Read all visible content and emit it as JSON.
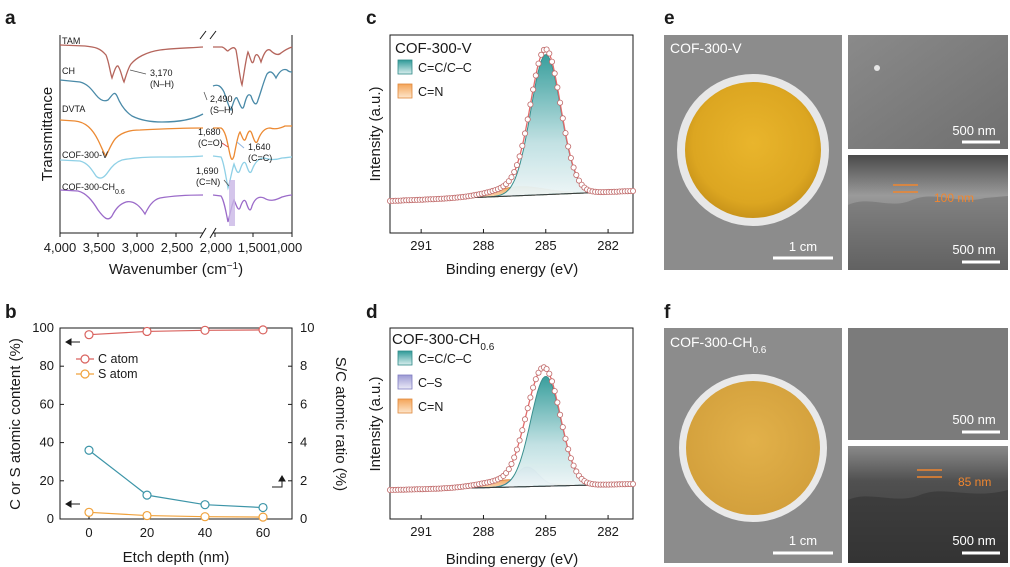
{
  "panels": {
    "a": "a",
    "b": "b",
    "c": "c",
    "d": "d",
    "e": "e",
    "f": "f"
  },
  "panel_a": {
    "ylabel": "Transmittance",
    "xlabel": "Wavenumber (cm",
    "xlabel_sup": "−1",
    "xlabel_close": ")",
    "xticks": [
      "4,000",
      "3,500",
      "3,000",
      "2,500",
      "2,000",
      "1,500",
      "1,000"
    ],
    "curves": [
      {
        "name": "TAM",
        "color": "#b5655c"
      },
      {
        "name": "CH",
        "color": "#4a8aa8"
      },
      {
        "name": "DVTA",
        "color": "#ec8a33"
      },
      {
        "name": "COF-300-V",
        "color": "#8fd0e6"
      },
      {
        "name": "COF-300-CH",
        "sub": "0.6",
        "color": "#9b6bc9"
      }
    ],
    "annotations": [
      {
        "l1": "3,170",
        "l2": "(N–H)"
      },
      {
        "l1": "2,490",
        "l2": "(S–H)"
      },
      {
        "l1": "1,680",
        "l2": "(C=O)"
      },
      {
        "l1": "1,640",
        "l2": "(C=C)"
      },
      {
        "l1": "1,690",
        "l2": "(C=N)"
      }
    ]
  },
  "panel_b": {
    "ylabel_left": "C or S atomic content (%)",
    "ylabel_right": "S/C atomic ratio (%)",
    "xlabel": "Etch depth (nm)",
    "legend": [
      {
        "name": "C atom",
        "color": "#d9625e"
      },
      {
        "name": "S atom",
        "color": "#f0a23c"
      }
    ]
  },
  "panel_c": {
    "title": "COF-300-V",
    "ylabel": "Intensity (a.u.)",
    "xlabel": "Binding energy (eV)",
    "xticks": [
      "291",
      "288",
      "285",
      "282"
    ],
    "legend": [
      {
        "name": "C=C/C–C",
        "color": "#3a9b9a"
      },
      {
        "name": "C=N",
        "color": "#f4a458"
      }
    ]
  },
  "panel_d": {
    "title": "COF-300-CH",
    "title_sub": "0.6",
    "ylabel": "Intensity (a.u.)",
    "xlabel": "Binding energy (eV)",
    "xticks": [
      "291",
      "288",
      "285",
      "282"
    ],
    "legend": [
      {
        "name": "C=C/C–C",
        "color": "#3a9b9a"
      },
      {
        "name": "C–S",
        "color": "#9c9ad4"
      },
      {
        "name": "C=N",
        "color": "#f4a458"
      }
    ]
  },
  "panel_e": {
    "label": "COF-300-V",
    "scale_photo": "1 cm",
    "scale_sem_top": "500 nm",
    "scale_sem_bottom": "500 nm",
    "thickness": "100 nm"
  },
  "panel_f": {
    "label": "COF-300-CH",
    "label_sub": "0.6",
    "scale_photo": "1 cm",
    "scale_sem_top": "500 nm",
    "scale_sem_bottom": "500 nm",
    "thickness": "85 nm"
  },
  "chart_data": [
    {
      "type": "line",
      "panel": "a",
      "xlabel": "Wavenumber (cm−1)",
      "ylabel": "Transmittance",
      "xlim": [
        4000,
        1000
      ],
      "axis_break": [
        2250,
        2050
      ],
      "series": [
        {
          "name": "TAM"
        },
        {
          "name": "CH"
        },
        {
          "name": "DVTA"
        },
        {
          "name": "COF-300-V"
        },
        {
          "name": "COF-300-CH0.6"
        }
      ]
    },
    {
      "type": "line",
      "panel": "b",
      "xlabel": "Etch depth (nm)",
      "ylabel": "C or S atomic content (%)",
      "ylabel_right": "S/C atomic ratio (%)",
      "x": [
        0,
        20,
        40,
        60
      ],
      "xlim": [
        -10,
        70
      ],
      "ylim": [
        0,
        100
      ],
      "ylim_right": [
        0,
        10
      ],
      "yticks": [
        0,
        20,
        40,
        60,
        80,
        100
      ],
      "yticks_right": [
        0,
        2,
        4,
        6,
        8,
        10
      ],
      "series": [
        {
          "name": "C atom",
          "axis": "left",
          "values": [
            96.5,
            98.2,
            98.8,
            99.0
          ]
        },
        {
          "name": "S atom",
          "axis": "left",
          "values": [
            3.5,
            1.8,
            1.2,
            1.0
          ]
        },
        {
          "axis": "right",
          "values": [
            3.6,
            1.25,
            0.75,
            0.6
          ]
        }
      ]
    },
    {
      "type": "line",
      "panel": "c",
      "title": "COF-300-V",
      "xlabel": "Binding energy (eV)",
      "ylabel": "Intensity (a.u.)",
      "xlim": [
        292.5,
        280.8
      ],
      "xticks": [
        291,
        288,
        285,
        282
      ],
      "series": [
        {
          "name": "C=C/C–C",
          "center": 285.0,
          "height": 0.94
        },
        {
          "name": "C=N",
          "center": 286.3,
          "height": 0.06
        }
      ]
    },
    {
      "type": "line",
      "panel": "d",
      "title": "COF-300-CH0.6",
      "xlabel": "Binding energy (eV)",
      "ylabel": "Intensity (a.u.)",
      "xlim": [
        292.5,
        280.8
      ],
      "xticks": [
        291,
        288,
        285,
        282
      ],
      "series": [
        {
          "name": "C=C/C–C",
          "center": 285.0,
          "height": 0.9
        },
        {
          "name": "C–S",
          "center": 285.9,
          "height": 0.16
        },
        {
          "name": "C=N",
          "center": 286.7,
          "height": 0.06
        }
      ]
    }
  ]
}
